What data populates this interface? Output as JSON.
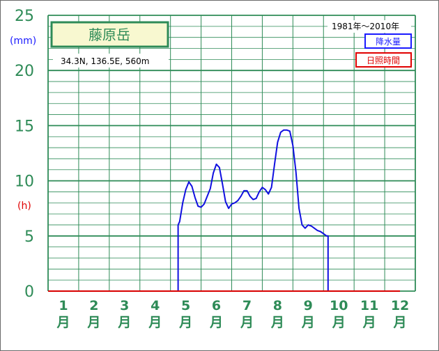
{
  "station": {
    "name": "藤原岳",
    "coords": "34.3N,  136.5E,  560m"
  },
  "period": "1981年〜2010年",
  "units": {
    "left": "(mm)",
    "right": "(h)"
  },
  "legend": {
    "precip": "降水量",
    "sunshine": "日照時間"
  },
  "colors": {
    "precip": "#1010e0",
    "sunshine": "#d80000",
    "grid": "#2e8b57",
    "background": "#ffffff"
  },
  "chart_data": {
    "type": "line",
    "title": "藤原岳",
    "xlabel": "",
    "ylabel": "(mm)",
    "ylabel_secondary": "(h)",
    "ylim": [
      0,
      25
    ],
    "grid": true,
    "legend_position": "top-right",
    "yticks": [
      "0",
      "5",
      "10",
      "15",
      "20",
      "25"
    ],
    "categories": [
      "1月",
      "2月",
      "3月",
      "4月",
      "5月",
      "6月",
      "7月",
      "8月",
      "9月",
      "10月",
      "11月",
      "12月"
    ],
    "month_numbers": [
      "1",
      "2",
      "3",
      "4",
      "5",
      "6",
      "7",
      "8",
      "9",
      "10",
      "11",
      "12"
    ],
    "month_suffix": "月",
    "series": [
      {
        "name": "降水量",
        "points": [
          [
            4.25,
            0
          ],
          [
            4.25,
            6.0
          ],
          [
            4.3,
            6.3
          ],
          [
            4.4,
            8.0
          ],
          [
            4.5,
            9.2
          ],
          [
            4.6,
            9.9
          ],
          [
            4.7,
            9.5
          ],
          [
            4.8,
            8.5
          ],
          [
            4.9,
            7.7
          ],
          [
            5.0,
            7.6
          ],
          [
            5.1,
            7.9
          ],
          [
            5.3,
            9.3
          ],
          [
            5.4,
            10.7
          ],
          [
            5.5,
            11.5
          ],
          [
            5.6,
            11.2
          ],
          [
            5.7,
            9.7
          ],
          [
            5.8,
            8.1
          ],
          [
            5.9,
            7.5
          ],
          [
            6.0,
            7.9
          ],
          [
            6.1,
            8.0
          ],
          [
            6.2,
            8.2
          ],
          [
            6.3,
            8.6
          ],
          [
            6.4,
            9.1
          ],
          [
            6.5,
            9.1
          ],
          [
            6.6,
            8.6
          ],
          [
            6.7,
            8.3
          ],
          [
            6.8,
            8.4
          ],
          [
            6.9,
            9.0
          ],
          [
            7.0,
            9.4
          ],
          [
            7.1,
            9.2
          ],
          [
            7.2,
            8.8
          ],
          [
            7.3,
            9.4
          ],
          [
            7.4,
            11.5
          ],
          [
            7.5,
            13.5
          ],
          [
            7.6,
            14.4
          ],
          [
            7.7,
            14.6
          ],
          [
            7.8,
            14.6
          ],
          [
            7.9,
            14.5
          ],
          [
            8.0,
            13.2
          ],
          [
            8.1,
            10.8
          ],
          [
            8.2,
            7.5
          ],
          [
            8.3,
            6.0
          ],
          [
            8.4,
            5.7
          ],
          [
            8.5,
            6.0
          ],
          [
            8.6,
            5.9
          ],
          [
            8.7,
            5.7
          ],
          [
            8.8,
            5.5
          ],
          [
            8.9,
            5.4
          ],
          [
            9.0,
            5.2
          ],
          [
            9.1,
            5.0
          ],
          [
            9.15,
            5.0
          ],
          [
            9.15,
            0
          ]
        ]
      },
      {
        "name": "日照時間",
        "points": [
          [
            0.0,
            0
          ],
          [
            11.5,
            0
          ]
        ]
      }
    ]
  }
}
